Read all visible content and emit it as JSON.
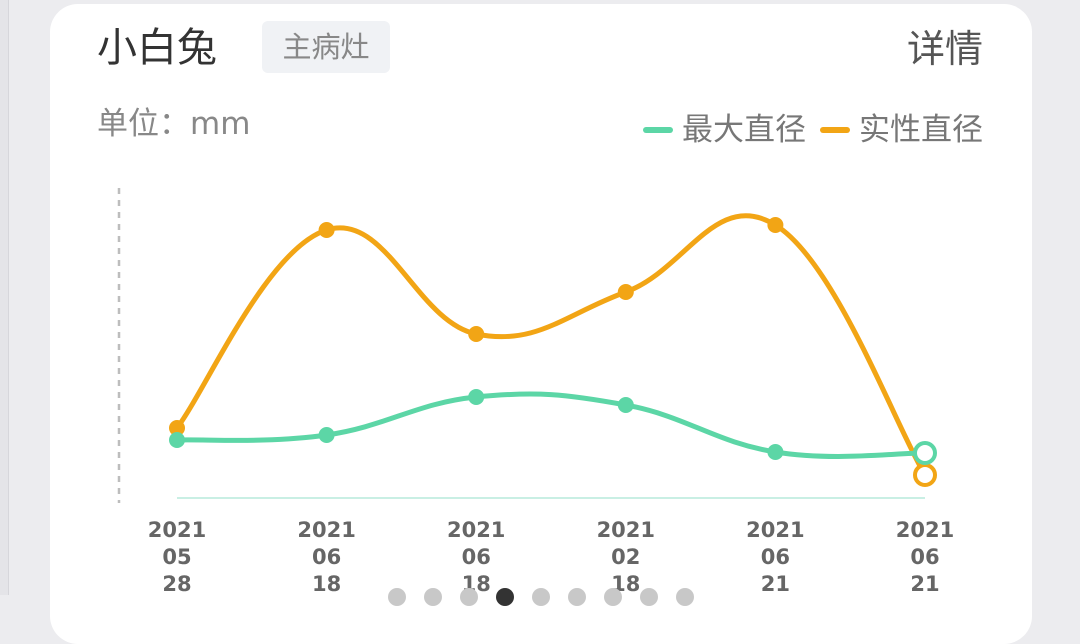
{
  "header": {
    "title": "小白兔",
    "tag": "主病灶",
    "detail_link": "详情"
  },
  "unit_label": "单位：mm",
  "pager": {
    "count": 9,
    "active_index": 3
  },
  "chart_data": {
    "type": "line",
    "categories": [
      [
        "2021",
        "05",
        "28"
      ],
      [
        "2021",
        "06",
        "18"
      ],
      [
        "2021",
        "06",
        "18"
      ],
      [
        "2021",
        "02",
        "18"
      ],
      [
        "2021",
        "06",
        "21"
      ],
      [
        "2021",
        "06",
        "21"
      ]
    ],
    "series": [
      {
        "name": "最大直径",
        "color": "#5cd6a6",
        "values": [
          5.8,
          6.3,
          10.1,
          9.3,
          4.6,
          4.5
        ],
        "last_point_hollow": true
      },
      {
        "name": "实性直径",
        "color": "#f2a515",
        "values": [
          7.0,
          26.8,
          16.4,
          20.6,
          27.3,
          2.3
        ],
        "last_point_hollow": true
      }
    ],
    "ylim": [
      0,
      32
    ],
    "grid": false,
    "legend_position": "top-right"
  }
}
